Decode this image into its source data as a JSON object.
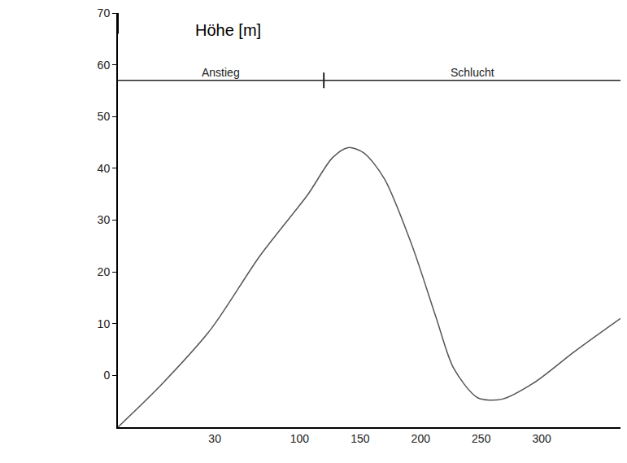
{
  "chart_data": {
    "type": "line",
    "y_label": "Höhe [m]",
    "x": [
      -50,
      -13,
      27,
      67,
      107,
      127,
      140,
      153,
      170,
      193,
      213,
      227,
      247,
      267,
      293,
      327,
      365
    ],
    "values": [
      -10,
      -1.5,
      9,
      23,
      35,
      42,
      44,
      43,
      38,
      25,
      11,
      1.5,
      -4.3,
      -4.6,
      -1.5,
      4.6,
      11
    ],
    "color": "#555555",
    "xlim": [
      -50,
      365
    ],
    "xticks": [
      30,
      100,
      150,
      200,
      250,
      300
    ],
    "ylim": [
      -10,
      70
    ],
    "yticks": [
      0,
      10,
      20,
      30,
      40,
      50,
      60,
      70
    ],
    "bands": [
      {
        "label": "Anstieg",
        "from": -50,
        "to": 120
      },
      {
        "label": "Schlucht",
        "from": 120,
        "to": 365
      }
    ],
    "band_y": 57,
    "grid": false
  }
}
